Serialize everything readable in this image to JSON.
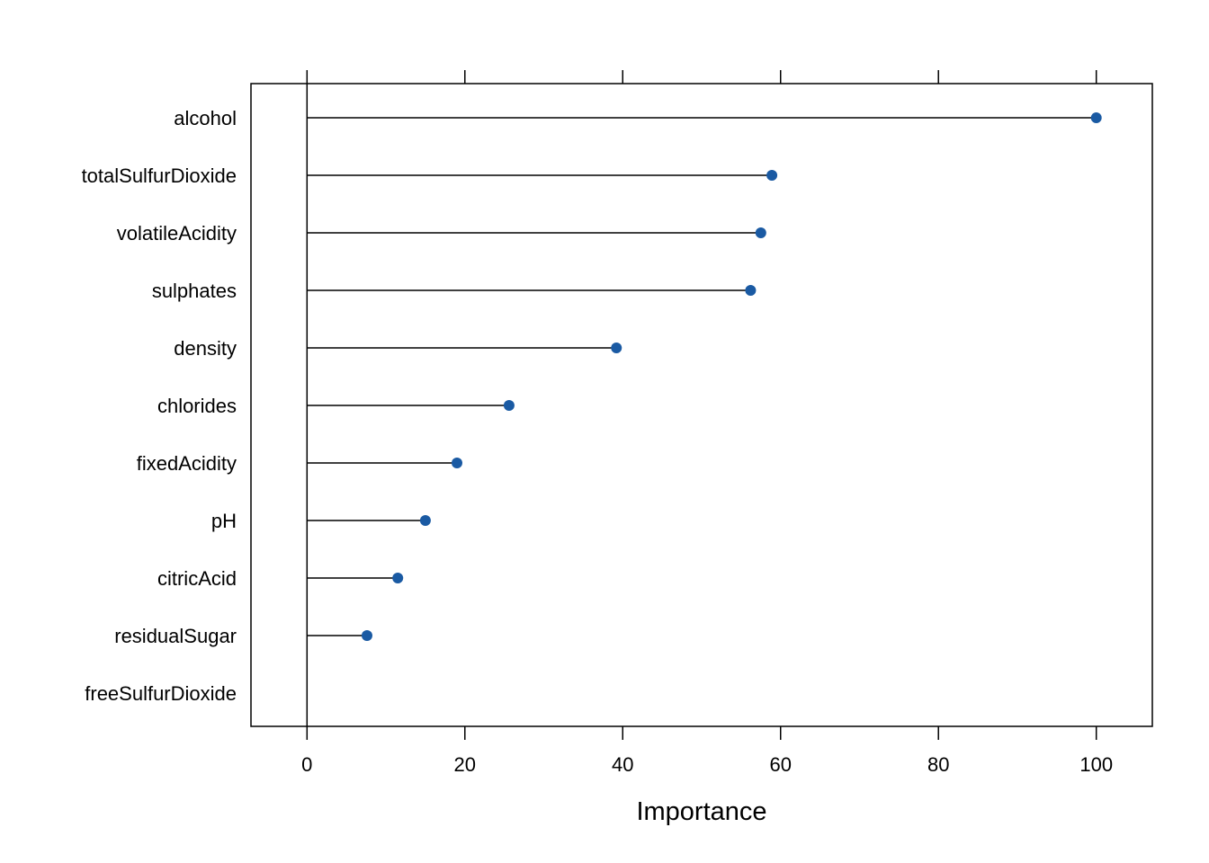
{
  "chart_data": {
    "type": "dot",
    "title": "",
    "xlabel": "Importance",
    "ylabel": "",
    "xlim": [
      -7.1,
      107.1
    ],
    "x_ticks": [
      0,
      20,
      40,
      60,
      80,
      100
    ],
    "x_tick_labels": [
      "0",
      "20",
      "40",
      "60",
      "80",
      "100"
    ],
    "grid": false,
    "legend": "none",
    "colors": {
      "point": "#1a5aa3",
      "line": "#000000",
      "frame": "#000000"
    },
    "categories": [
      "alcohol",
      "totalSulfurDioxide",
      "volatileAcidity",
      "sulphates",
      "density",
      "chlorides",
      "fixedAcidity",
      "pH",
      "citricAcid",
      "residualSugar",
      "freeSulfurDioxide"
    ],
    "values": [
      100,
      58.9,
      57.5,
      56.2,
      39.2,
      25.6,
      19.0,
      15.0,
      11.5,
      7.6,
      0
    ]
  }
}
